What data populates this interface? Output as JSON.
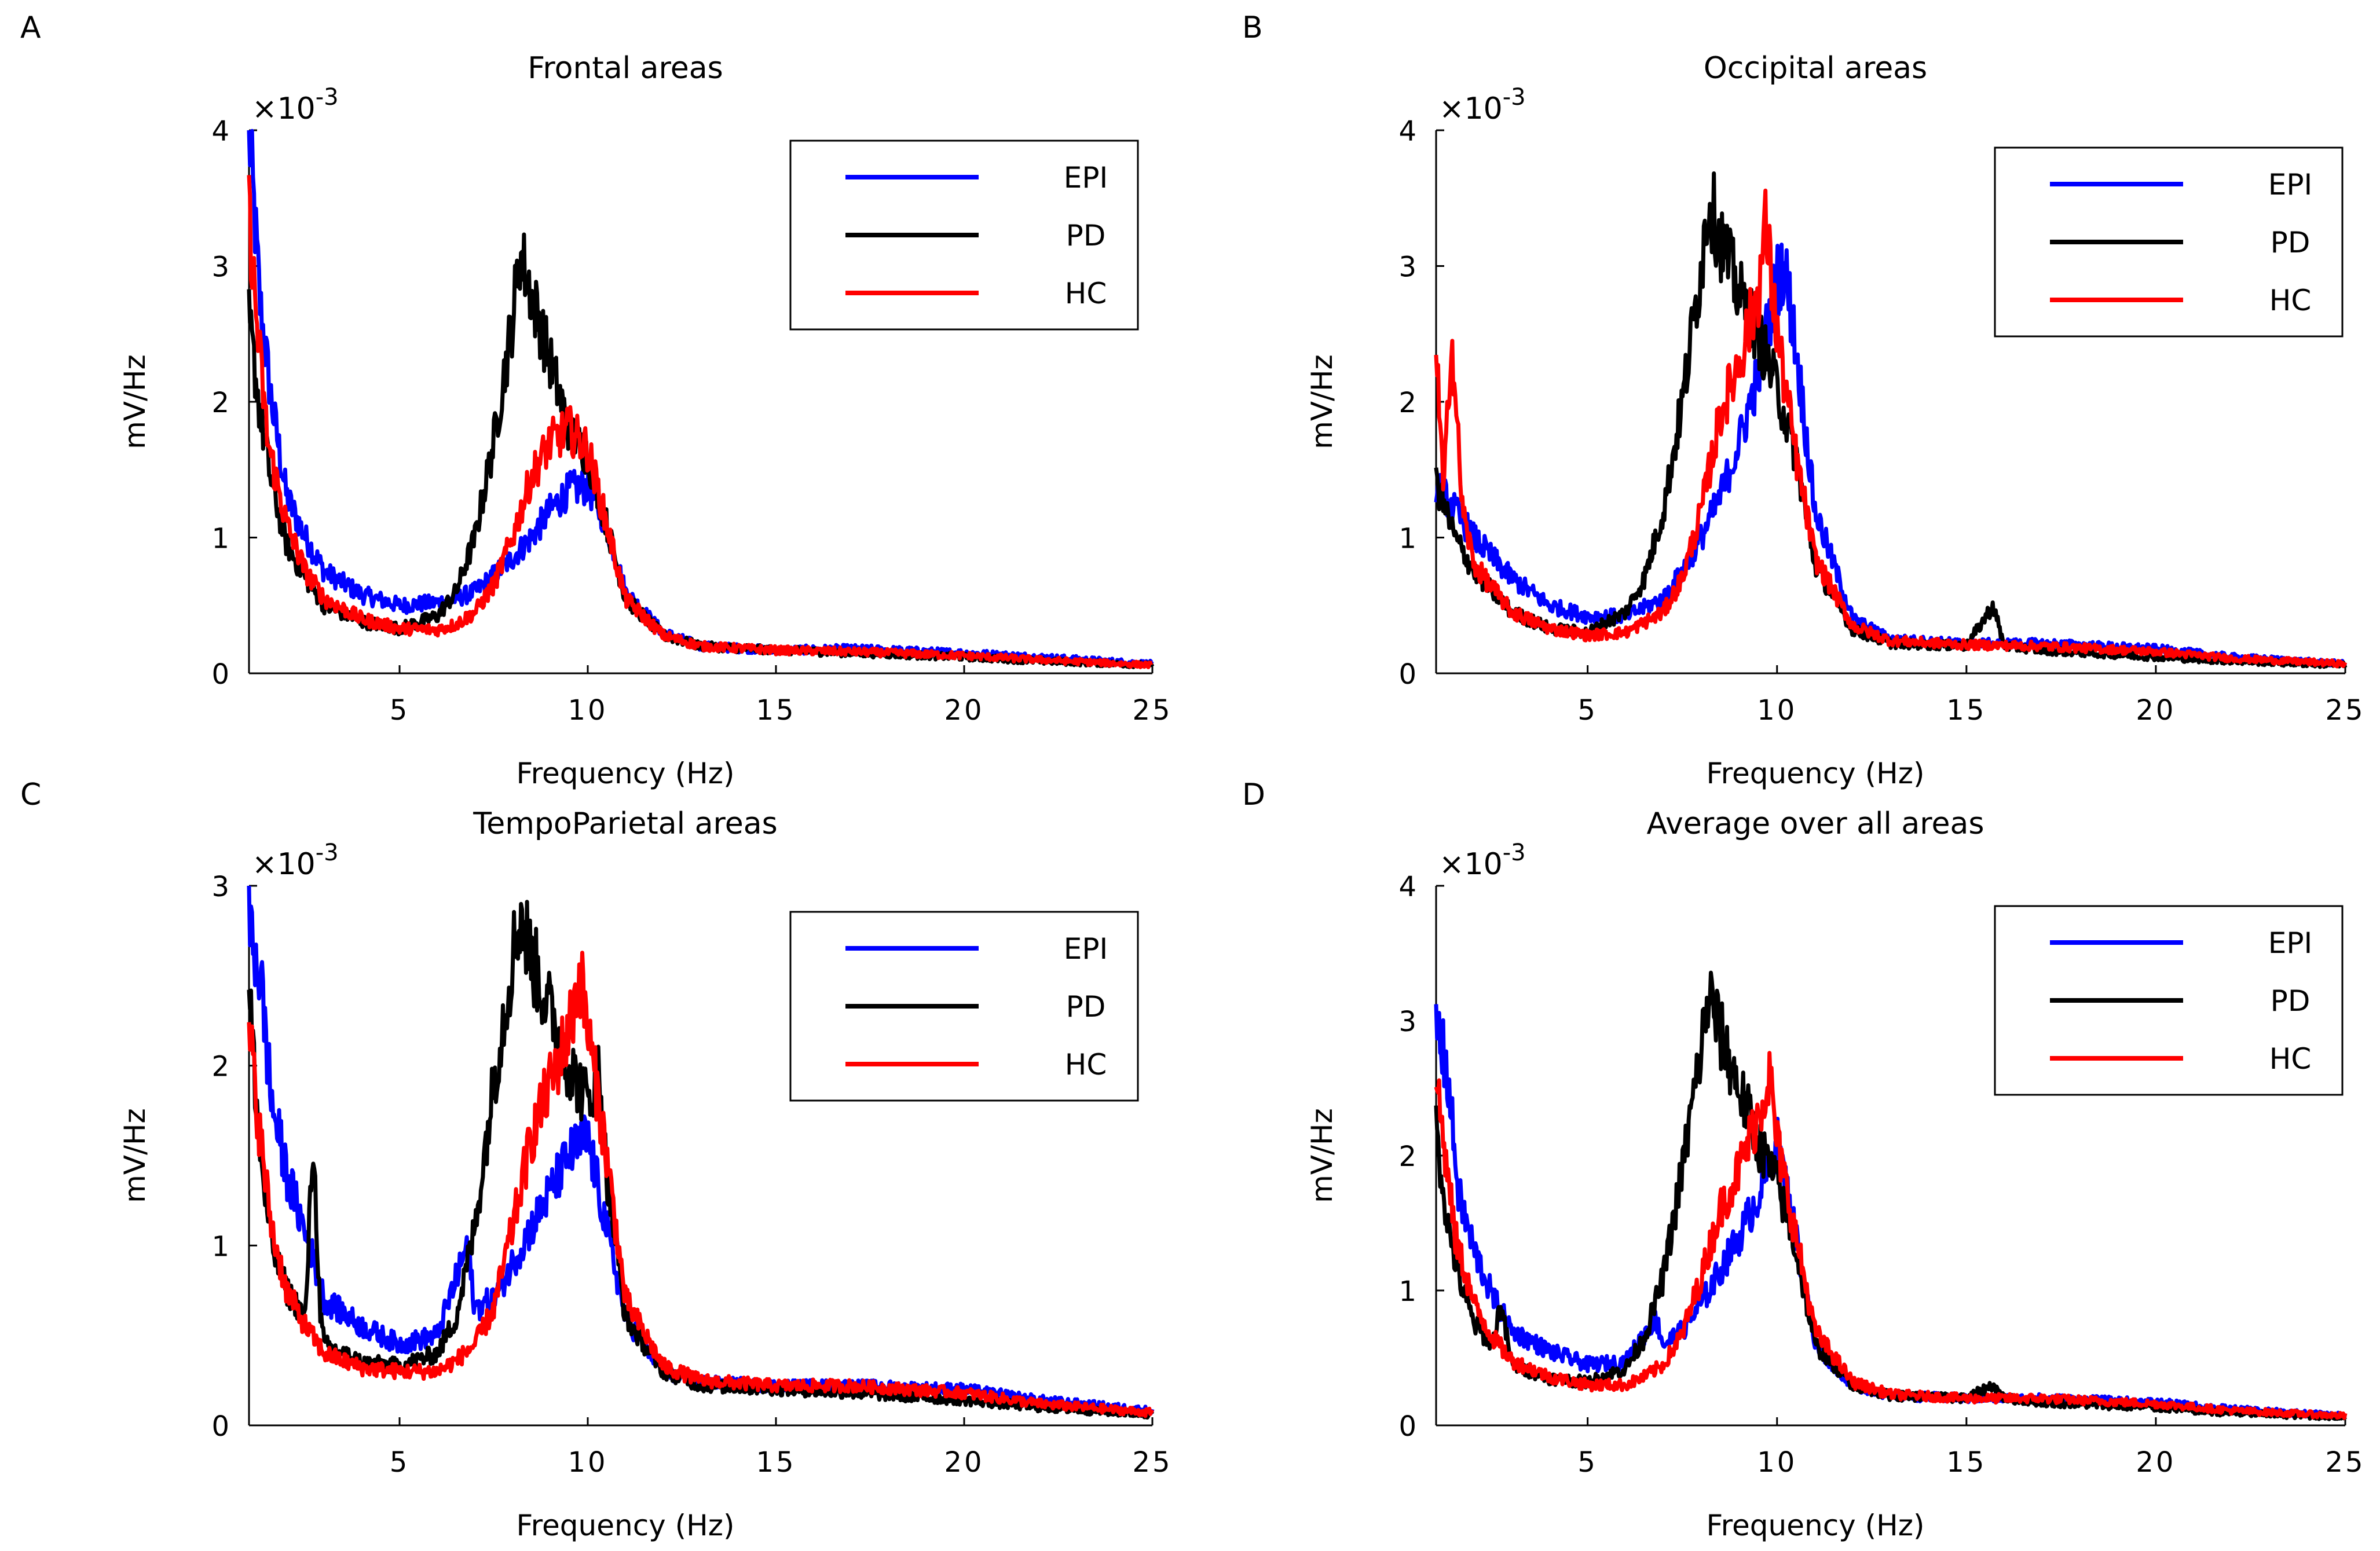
{
  "chart_data": [
    {
      "panel": "A",
      "type": "line",
      "title": "Frontal areas",
      "xlabel": "Frequency (Hz)",
      "ylabel": "mV/Hz",
      "exponent_label": "×10",
      "exponent": "-3",
      "xlim": [
        1,
        25
      ],
      "ylim": [
        0,
        4
      ],
      "xticks": [
        "5",
        "10",
        "15",
        "20",
        "25"
      ],
      "yticks": [
        "0",
        "1",
        "2",
        "3",
        "4"
      ],
      "legend": [
        "EPI",
        "PD",
        "HC"
      ],
      "series": [
        {
          "name": "EPI",
          "color": "#0000ff",
          "x": [
            1,
            1.3,
            1.6,
            2,
            2.5,
            3,
            4,
            5,
            6,
            6.5,
            7,
            7.5,
            8,
            8.5,
            9,
            9.5,
            10,
            10.5,
            11,
            12,
            13,
            15,
            17,
            20,
            22,
            25
          ],
          "y": [
            4.0,
            2.7,
            2.0,
            1.3,
            1.0,
            0.75,
            0.58,
            0.5,
            0.52,
            0.55,
            0.6,
            0.72,
            0.85,
            1.0,
            1.2,
            1.35,
            1.38,
            1.1,
            0.6,
            0.3,
            0.2,
            0.17,
            0.18,
            0.15,
            0.12,
            0.07
          ]
        },
        {
          "name": "PD",
          "color": "#000000",
          "x": [
            1,
            1.3,
            1.6,
            2,
            2.5,
            3,
            4,
            5,
            6,
            6.5,
            7,
            7.5,
            8,
            8.2,
            8.5,
            9,
            9.5,
            10,
            10.5,
            11,
            12,
            13,
            15,
            17,
            20,
            22,
            25
          ],
          "y": [
            2.6,
            1.9,
            1.4,
            0.95,
            0.7,
            0.5,
            0.38,
            0.33,
            0.42,
            0.6,
            1.0,
            1.7,
            2.6,
            3.1,
            2.8,
            2.3,
            1.8,
            1.6,
            1.1,
            0.55,
            0.28,
            0.2,
            0.17,
            0.15,
            0.12,
            0.09,
            0.06
          ]
        },
        {
          "name": "HC",
          "color": "#ff0000",
          "x": [
            1,
            1.2,
            1.5,
            2,
            2.5,
            3,
            4,
            5,
            6,
            6.5,
            7,
            7.5,
            8,
            8.5,
            9,
            9.5,
            10,
            10.5,
            11,
            12,
            13,
            15,
            17,
            20,
            22,
            25
          ],
          "y": [
            3.4,
            2.6,
            1.7,
            1.1,
            0.75,
            0.55,
            0.4,
            0.33,
            0.32,
            0.36,
            0.45,
            0.65,
            1.0,
            1.45,
            1.7,
            1.8,
            1.65,
            1.1,
            0.55,
            0.28,
            0.2,
            0.17,
            0.16,
            0.13,
            0.1,
            0.06
          ]
        }
      ]
    },
    {
      "panel": "B",
      "type": "line",
      "title": "Occipital areas",
      "xlabel": "Frequency (Hz)",
      "ylabel": "mV/Hz",
      "exponent_label": "×10",
      "exponent": "-3",
      "xlim": [
        1,
        25
      ],
      "ylim": [
        0,
        4
      ],
      "xticks": [
        "5",
        "10",
        "15",
        "20",
        "25"
      ],
      "yticks": [
        "0",
        "1",
        "2",
        "3",
        "4"
      ],
      "legend": [
        "EPI",
        "PD",
        "HC"
      ],
      "series": [
        {
          "name": "EPI",
          "color": "#0000ff",
          "x": [
            1,
            1.5,
            2,
            3,
            4,
            5,
            6,
            7,
            7.5,
            8,
            8.5,
            9,
            9.5,
            10,
            10.2,
            10.5,
            11,
            12,
            13,
            15,
            17,
            20,
            22,
            25
          ],
          "y": [
            1.4,
            1.2,
            1.0,
            0.7,
            0.5,
            0.42,
            0.42,
            0.55,
            0.75,
            1.0,
            1.3,
            1.7,
            2.2,
            2.9,
            3.0,
            2.4,
            1.2,
            0.4,
            0.25,
            0.22,
            0.22,
            0.18,
            0.12,
            0.07
          ]
        },
        {
          "name": "PD",
          "color": "#000000",
          "x": [
            1,
            1.5,
            2,
            3,
            4,
            5,
            6,
            6.5,
            7,
            7.5,
            8,
            8.2,
            8.5,
            9,
            9.5,
            10,
            10.5,
            11,
            12,
            13,
            15,
            15.7,
            16,
            17,
            20,
            22,
            25
          ],
          "y": [
            1.4,
            1.0,
            0.75,
            0.45,
            0.33,
            0.3,
            0.45,
            0.7,
            1.2,
            2.0,
            3.0,
            3.5,
            3.2,
            2.8,
            2.5,
            2.1,
            1.6,
            0.8,
            0.32,
            0.22,
            0.2,
            0.5,
            0.2,
            0.17,
            0.12,
            0.09,
            0.06
          ]
        },
        {
          "name": "HC",
          "color": "#ff0000",
          "x": [
            1,
            1.2,
            1.4,
            1.7,
            2,
            3,
            4,
            5,
            6,
            7,
            7.5,
            8,
            8.5,
            9,
            9.5,
            9.7,
            10,
            10.5,
            11,
            12,
            13,
            15,
            17,
            20,
            22,
            25
          ],
          "y": [
            2.4,
            1.3,
            2.5,
            1.2,
            0.8,
            0.45,
            0.33,
            0.28,
            0.3,
            0.45,
            0.7,
            1.2,
            1.9,
            2.3,
            2.8,
            3.3,
            2.5,
            1.6,
            0.85,
            0.35,
            0.24,
            0.21,
            0.2,
            0.16,
            0.11,
            0.07
          ]
        }
      ]
    },
    {
      "panel": "C",
      "type": "line",
      "title": "TempoParietal areas",
      "xlabel": "Frequency (Hz)",
      "ylabel": "mV/Hz",
      "exponent_label": "×10",
      "exponent": "-3",
      "xlim": [
        1,
        25
      ],
      "ylim": [
        0,
        3
      ],
      "xticks": [
        "5",
        "10",
        "15",
        "20",
        "25"
      ],
      "yticks": [
        "0",
        "1",
        "2",
        "3"
      ],
      "legend": [
        "EPI",
        "PD",
        "HC"
      ],
      "series": [
        {
          "name": "EPI",
          "color": "#0000ff",
          "x": [
            1,
            1.3,
            1.6,
            2,
            2.6,
            3,
            4,
            5,
            6,
            6.8,
            7,
            7.5,
            8,
            8.5,
            9,
            9.5,
            10,
            10.5,
            11,
            12,
            13,
            15,
            17,
            20,
            22,
            25
          ],
          "y": [
            2.8,
            2.5,
            1.8,
            1.4,
            1.0,
            0.7,
            0.55,
            0.45,
            0.5,
            1.0,
            0.65,
            0.7,
            0.9,
            1.1,
            1.3,
            1.5,
            1.6,
            1.1,
            0.6,
            0.3,
            0.24,
            0.22,
            0.22,
            0.2,
            0.14,
            0.08
          ]
        },
        {
          "name": "PD",
          "color": "#000000",
          "x": [
            1,
            1.3,
            1.6,
            2,
            2.5,
            2.7,
            2.9,
            3,
            4,
            5,
            6,
            6.5,
            7,
            7.5,
            8,
            8.2,
            8.5,
            9,
            9.5,
            10,
            10.3,
            10.5,
            11,
            12,
            13,
            15,
            17,
            20,
            22,
            25
          ],
          "y": [
            2.4,
            1.5,
            1.0,
            0.75,
            0.6,
            1.6,
            0.6,
            0.45,
            0.35,
            0.33,
            0.4,
            0.6,
            1.1,
            1.9,
            2.6,
            2.85,
            2.6,
            2.3,
            2.0,
            1.8,
            2.0,
            1.4,
            0.6,
            0.3,
            0.22,
            0.2,
            0.18,
            0.14,
            0.1,
            0.06
          ]
        },
        {
          "name": "HC",
          "color": "#ff0000",
          "x": [
            1,
            1.3,
            1.6,
            2,
            2.5,
            3,
            4,
            5,
            6,
            6.5,
            7,
            7.5,
            8,
            8.5,
            9,
            9.5,
            9.8,
            10,
            10.5,
            11,
            12,
            13,
            15,
            17,
            20,
            22,
            25
          ],
          "y": [
            2.2,
            1.6,
            1.1,
            0.75,
            0.55,
            0.4,
            0.32,
            0.3,
            0.3,
            0.36,
            0.45,
            0.65,
            1.1,
            1.6,
            1.9,
            2.2,
            2.5,
            2.2,
            1.5,
            0.7,
            0.33,
            0.25,
            0.22,
            0.22,
            0.18,
            0.12,
            0.07
          ]
        }
      ]
    },
    {
      "panel": "D",
      "type": "line",
      "title": "Average over all areas",
      "xlabel": "Frequency (Hz)",
      "ylabel": "mV/Hz",
      "exponent_label": "×10",
      "exponent": "-3",
      "xlim": [
        1,
        25
      ],
      "ylim": [
        0,
        4
      ],
      "xticks": [
        "5",
        "10",
        "15",
        "20",
        "25"
      ],
      "yticks": [
        "0",
        "1",
        "2",
        "3",
        "4"
      ],
      "legend": [
        "EPI",
        "PD",
        "HC"
      ],
      "series": [
        {
          "name": "EPI",
          "color": "#0000ff",
          "x": [
            1,
            1.3,
            1.6,
            2,
            2.5,
            3,
            4,
            5,
            6,
            6.8,
            7,
            7.5,
            8,
            8.5,
            9,
            9.5,
            10,
            10.5,
            11,
            12,
            13,
            15,
            17,
            20,
            22,
            25
          ],
          "y": [
            3.0,
            2.6,
            1.7,
            1.3,
            0.95,
            0.7,
            0.55,
            0.45,
            0.47,
            0.8,
            0.6,
            0.7,
            0.9,
            1.15,
            1.4,
            1.7,
            2.1,
            1.4,
            0.6,
            0.3,
            0.22,
            0.2,
            0.2,
            0.17,
            0.12,
            0.07
          ]
        },
        {
          "name": "PD",
          "color": "#000000",
          "x": [
            1,
            1.3,
            1.6,
            2,
            2.5,
            2.7,
            3,
            4,
            5,
            6,
            6.5,
            7,
            7.5,
            8,
            8.2,
            8.5,
            9,
            9.5,
            10,
            10.5,
            11,
            12,
            13,
            15,
            15.7,
            16,
            17,
            20,
            22,
            25
          ],
          "y": [
            2.2,
            1.5,
            1.1,
            0.75,
            0.6,
            0.9,
            0.45,
            0.35,
            0.32,
            0.42,
            0.65,
            1.1,
            1.9,
            2.8,
            3.2,
            2.9,
            2.5,
            2.1,
            1.8,
            1.3,
            0.6,
            0.3,
            0.22,
            0.2,
            0.3,
            0.2,
            0.17,
            0.13,
            0.09,
            0.06
          ]
        },
        {
          "name": "HC",
          "color": "#ff0000",
          "x": [
            1,
            1.2,
            1.5,
            2,
            2.5,
            3,
            4,
            5,
            6,
            6.5,
            7,
            7.5,
            8,
            8.5,
            9,
            9.5,
            9.8,
            10,
            10.5,
            11,
            12,
            13,
            15,
            17,
            20,
            22,
            25
          ],
          "y": [
            2.6,
            2.1,
            1.4,
            0.9,
            0.65,
            0.48,
            0.36,
            0.3,
            0.3,
            0.36,
            0.45,
            0.68,
            1.1,
            1.6,
            1.9,
            2.3,
            2.6,
            2.1,
            1.4,
            0.7,
            0.32,
            0.23,
            0.2,
            0.2,
            0.16,
            0.11,
            0.07
          ]
        }
      ]
    }
  ]
}
